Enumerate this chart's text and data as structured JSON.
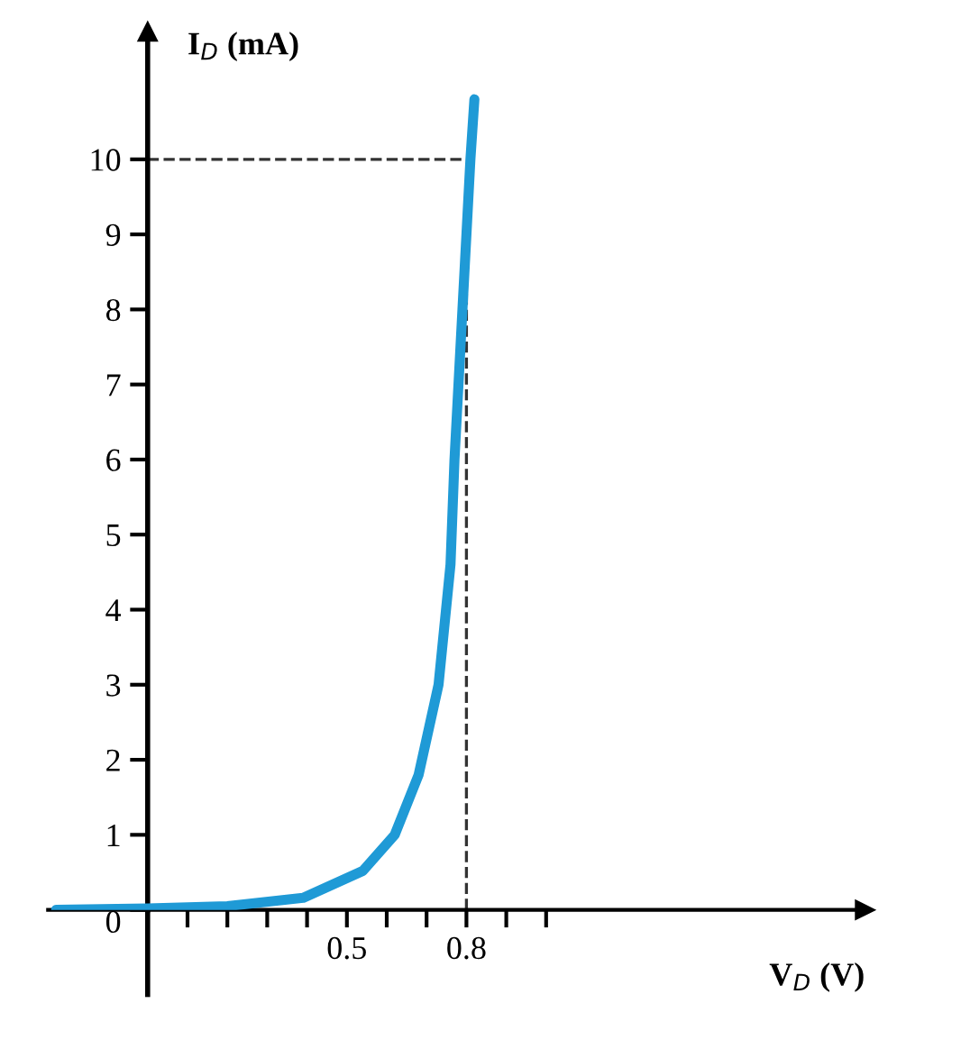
{
  "chart_data": {
    "type": "line",
    "xlabel": "V$_{D}$ (V)",
    "ylabel": "I$_{D}$ (mA)",
    "xlim": [
      -0.25,
      1.8
    ],
    "ylim": [
      0,
      11.7
    ],
    "xticks": [
      {
        "value": 0.1,
        "label": null
      },
      {
        "value": 0.2,
        "label": null
      },
      {
        "value": 0.3,
        "label": null
      },
      {
        "value": 0.4,
        "label": null
      },
      0.5,
      {
        "value": 0.6,
        "label": null
      },
      {
        "value": 0.7,
        "label": null
      },
      0.8,
      {
        "value": 0.9,
        "label": null
      },
      {
        "value": 1.0,
        "label": null
      }
    ],
    "yticks": [
      0,
      1,
      2,
      3,
      4,
      5,
      6,
      7,
      8,
      9,
      10
    ],
    "series": [
      {
        "color": "#1f9ad6",
        "x": [
          -0.23,
          0,
          0.2,
          0.39,
          0.54,
          0.62,
          0.68,
          0.73,
          0.76,
          0.77,
          0.79,
          0.81,
          0.82
        ],
        "values": [
          0,
          0.02,
          0.05,
          0.16,
          0.52,
          1.0,
          1.8,
          3.0,
          4.6,
          6,
          8,
          10,
          10.8
        ]
      }
    ],
    "ref_lines": [
      {
        "axis": "y",
        "value": 10,
        "line_style": "dashed",
        "color": "#333333"
      },
      {
        "axis": "x",
        "value": 0.8,
        "line_style": "dashed",
        "color": "#333333"
      }
    ],
    "grid": false,
    "marker": "none",
    "line_style": "solid"
  }
}
